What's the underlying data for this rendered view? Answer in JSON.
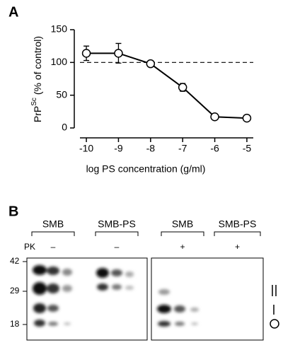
{
  "chart_data": {
    "type": "line",
    "panel_label": "A",
    "x": [
      -10,
      -9,
      -8,
      -7,
      -6,
      -5
    ],
    "values": [
      114,
      114,
      98,
      62,
      17,
      15
    ],
    "errors": [
      11,
      15,
      4,
      6,
      2,
      2
    ],
    "color": "#000000",
    "reference_line": 100,
    "xlim": [
      -10.2,
      -4.8
    ],
    "xticks": [
      -10,
      -9,
      -8,
      -7,
      -6,
      -5
    ],
    "ylim": [
      0,
      150
    ],
    "yticks": [
      0,
      50,
      100,
      150
    ],
    "xlabel": "log PS concentration (g/ml)",
    "ylabel": {
      "base": "PrP",
      "sup": "Sc",
      "rest": " (% of control)"
    },
    "grid": false
  },
  "panel_b": {
    "label": "B",
    "groups": [
      "SMB",
      "SMB-PS",
      "SMB",
      "SMB-PS"
    ],
    "pk_label": "PK",
    "pk": [
      "–",
      "–",
      "+",
      "+"
    ],
    "markers": [
      42,
      29,
      18
    ]
  }
}
